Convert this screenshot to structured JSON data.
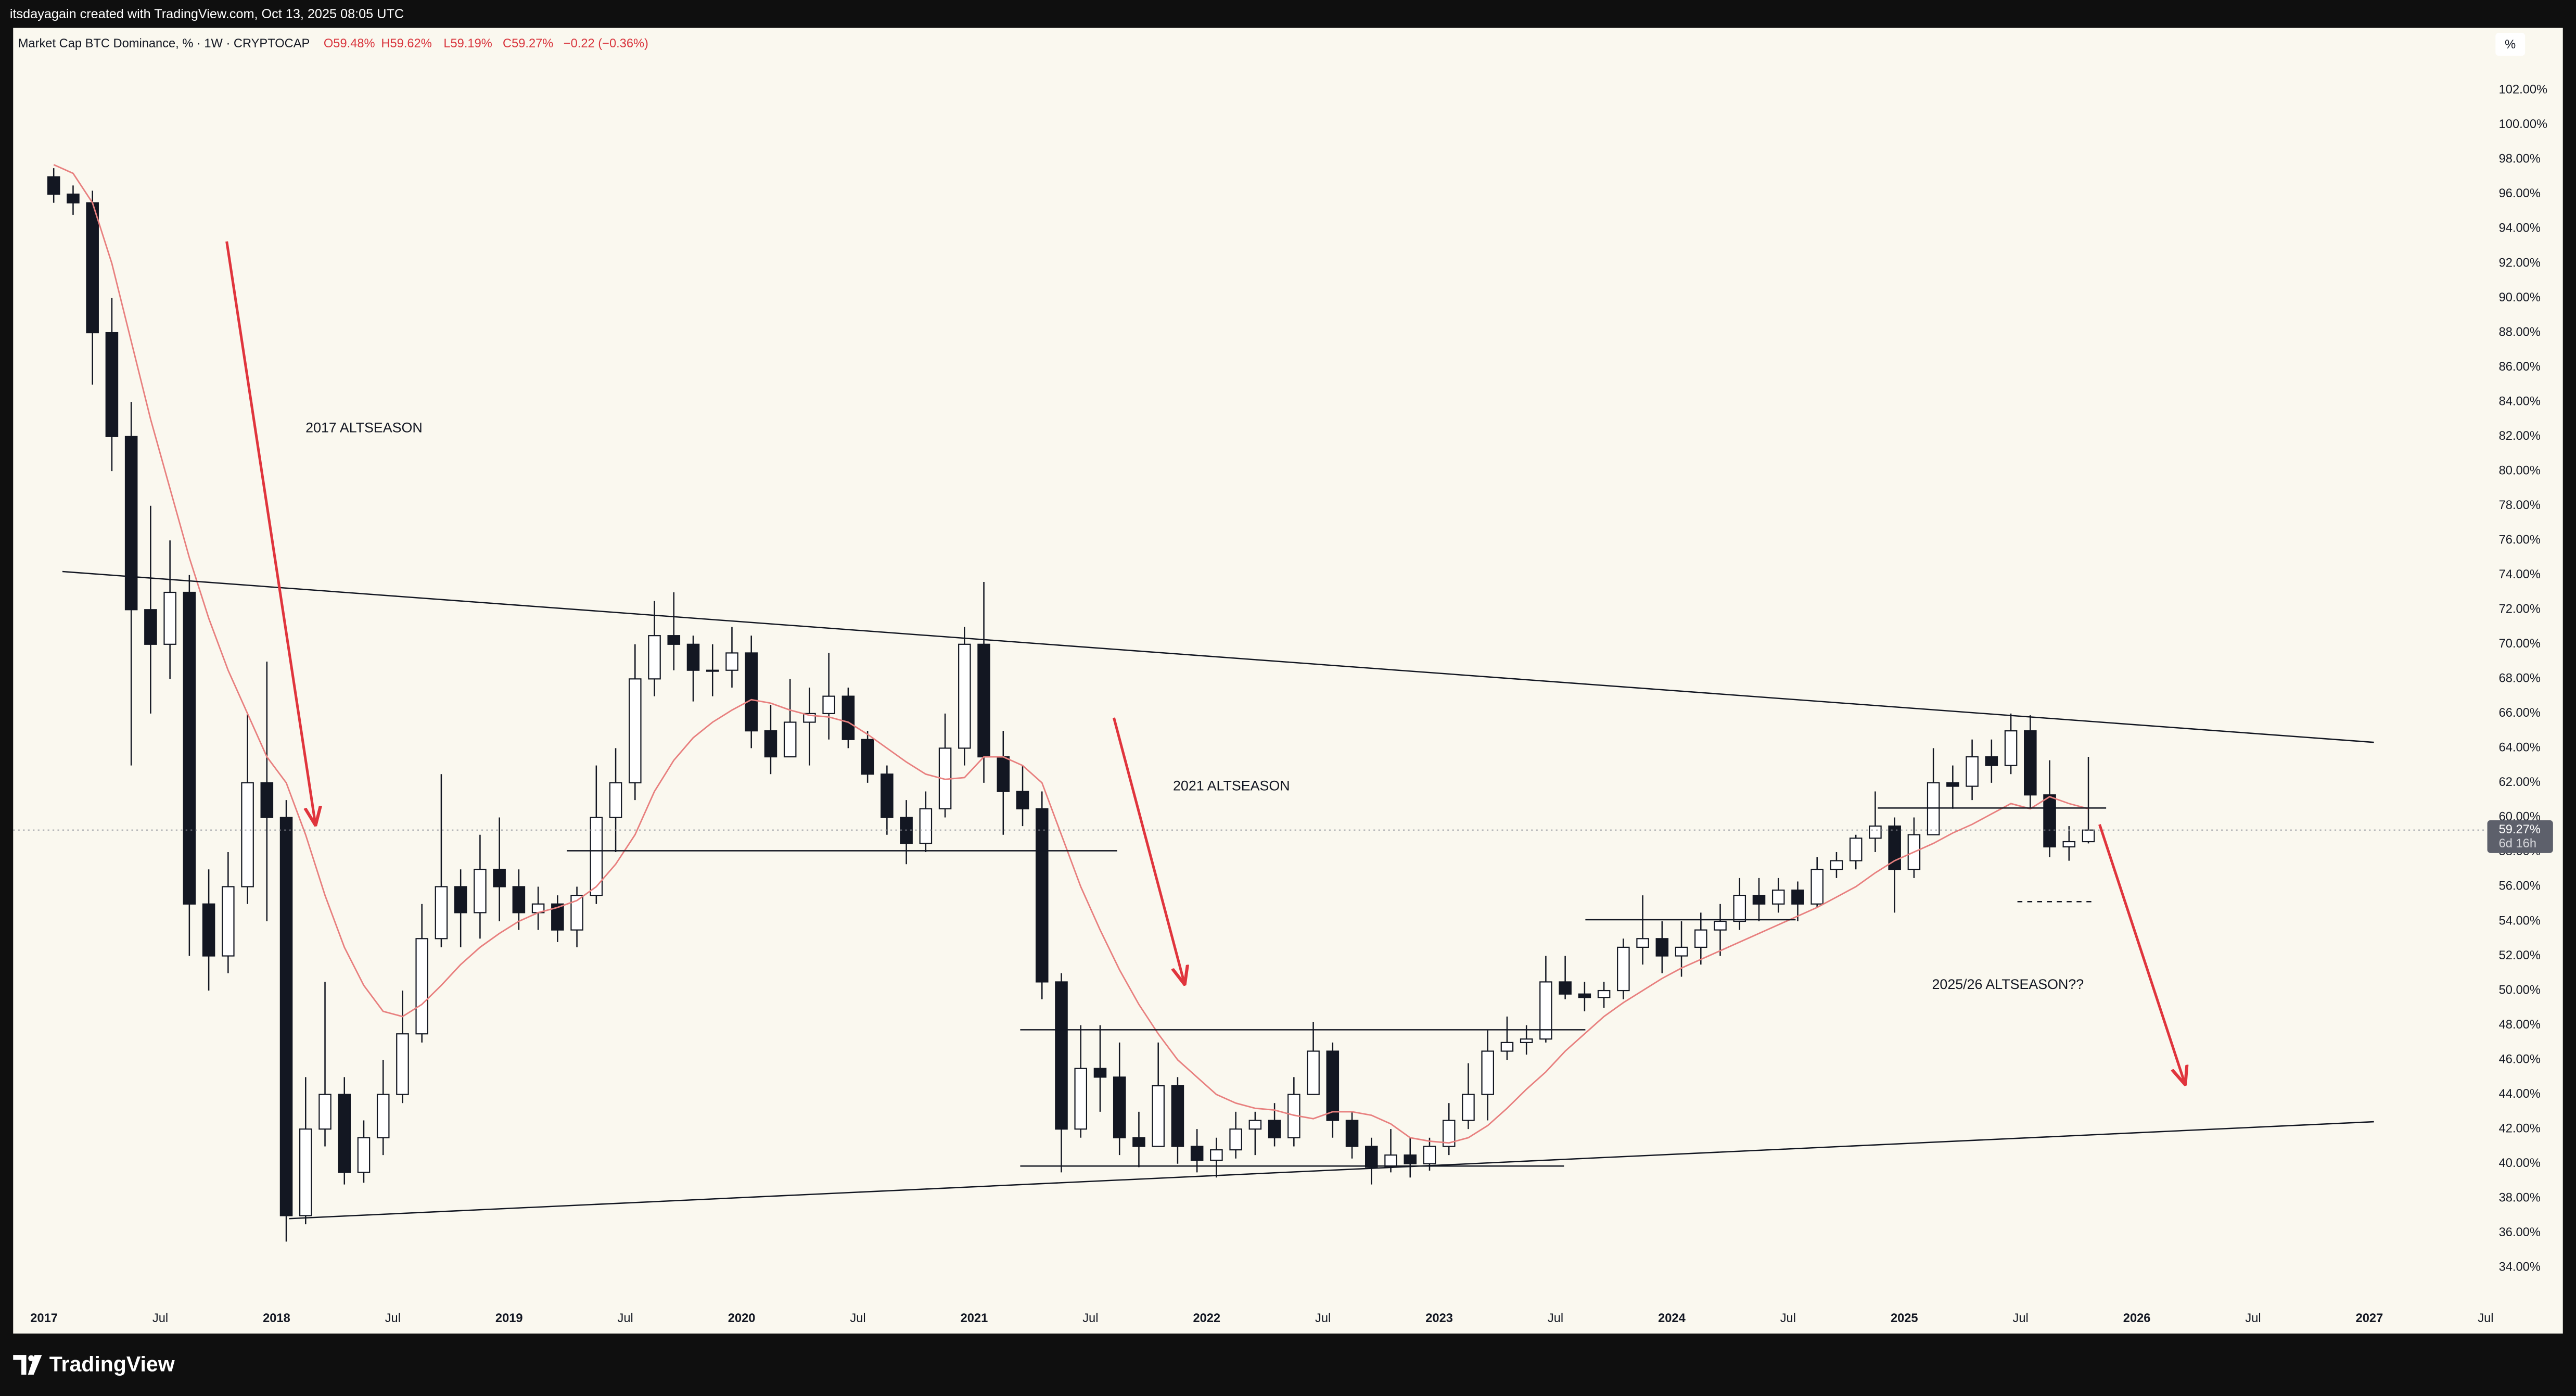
{
  "header": {
    "text": "itsdayagain created with TradingView.com, Oct 13, 2025 08:05 UTC"
  },
  "chart_data": {
    "type": "candlestick",
    "title": "Market Cap BTC Dominance, % · 1W · CRYPTOCAP",
    "ohlc_labels": [
      "O59.48%",
      "H59.62%",
      "L59.19%",
      "C59.27%"
    ],
    "change": "−0.22 (−0.36%)",
    "scale_label": "%",
    "x": [
      "2017-01",
      "2017-02",
      "2017-03",
      "2017-04",
      "2017-05",
      "2017-06",
      "2017-07",
      "2017-08",
      "2017-09",
      "2017-10",
      "2017-11",
      "2017-12",
      "2018-01",
      "2018-02",
      "2018-03",
      "2018-04",
      "2018-05",
      "2018-06",
      "2018-07",
      "2018-08",
      "2018-09",
      "2018-10",
      "2018-11",
      "2018-12",
      "2019-01",
      "2019-02",
      "2019-03",
      "2019-04",
      "2019-05",
      "2019-06",
      "2019-07",
      "2019-08",
      "2019-09",
      "2019-10",
      "2019-11",
      "2019-12",
      "2020-01",
      "2020-02",
      "2020-03",
      "2020-04",
      "2020-05",
      "2020-06",
      "2020-07",
      "2020-08",
      "2020-09",
      "2020-10",
      "2020-11",
      "2020-12",
      "2021-01",
      "2021-02",
      "2021-03",
      "2021-04",
      "2021-05",
      "2021-06",
      "2021-07",
      "2021-08",
      "2021-09",
      "2021-10",
      "2021-11",
      "2021-12",
      "2022-01",
      "2022-02",
      "2022-03",
      "2022-04",
      "2022-05",
      "2022-06",
      "2022-07",
      "2022-08",
      "2022-09",
      "2022-10",
      "2022-11",
      "2022-12",
      "2023-01",
      "2023-02",
      "2023-03",
      "2023-04",
      "2023-05",
      "2023-06",
      "2023-07",
      "2023-08",
      "2023-09",
      "2023-10",
      "2023-11",
      "2023-12",
      "2024-01",
      "2024-02",
      "2024-03",
      "2024-04",
      "2024-05",
      "2024-06",
      "2024-07",
      "2024-08",
      "2024-09",
      "2024-10",
      "2024-11",
      "2024-12",
      "2025-01",
      "2025-02",
      "2025-03",
      "2025-04",
      "2025-05",
      "2025-06",
      "2025-07",
      "2025-08",
      "2025-09",
      "2025-10"
    ],
    "open": [
      97,
      96,
      95.5,
      88,
      82,
      72,
      70,
      73,
      55,
      52,
      56,
      62,
      60,
      37,
      42,
      44,
      39.5,
      41.5,
      44,
      47.5,
      53,
      56,
      54.5,
      57,
      56,
      54.5,
      55,
      53.5,
      55.5,
      60,
      62,
      68,
      70.5,
      70,
      68.5,
      68.5,
      69.5,
      65,
      63.5,
      65.5,
      66,
      67,
      64.5,
      62.5,
      60,
      58.5,
      60.5,
      64,
      70,
      63.5,
      61.5,
      60.5,
      50.5,
      42,
      45.5,
      45,
      41.5,
      41,
      44.5,
      41,
      40.2,
      40.8,
      42,
      42.5,
      41.5,
      44,
      46.5,
      42.5,
      41,
      39.8,
      40.5,
      40,
      41,
      42.5,
      44,
      46.5,
      47,
      47.2,
      50.5,
      49.8,
      49.6,
      50,
      52.5,
      53,
      52,
      52.5,
      53.5,
      54,
      55.5,
      55,
      55.8,
      55,
      57,
      57.5,
      58.8,
      59.5,
      57,
      59,
      62,
      61.8,
      63.5,
      63,
      65,
      61.3,
      58.3,
      58.6
    ],
    "high": [
      97.5,
      96.5,
      96.2,
      90,
      84,
      78,
      76,
      74,
      57,
      58,
      66,
      69,
      61,
      45,
      50.5,
      45,
      42.5,
      46,
      50,
      55,
      62.5,
      57,
      59,
      60,
      57,
      56,
      55.5,
      56,
      63,
      64,
      70,
      72.5,
      73,
      70.5,
      70,
      71,
      70.5,
      66.5,
      68,
      67.5,
      69.5,
      67.5,
      65,
      63,
      61,
      61.5,
      66,
      71,
      73.6,
      65,
      63,
      61.5,
      51,
      48,
      48,
      47,
      43,
      47,
      45,
      42,
      41.5,
      43,
      43,
      43.5,
      45,
      48.2,
      47,
      43,
      41.5,
      42,
      41.5,
      41.5,
      43.5,
      45.8,
      47.7,
      48.5,
      48,
      52,
      52,
      50.5,
      50.5,
      53,
      55.5,
      54,
      54,
      54.5,
      55,
      56.5,
      56.5,
      56.5,
      56.3,
      57.7,
      58,
      59,
      61.5,
      60,
      60,
      64,
      63,
      64.5,
      64.5,
      66,
      65.9,
      63.3,
      59.5,
      63.5
    ],
    "low": [
      95.5,
      94.8,
      85,
      80,
      63,
      66,
      68,
      52,
      50,
      51,
      55,
      54,
      35.5,
      36.5,
      41,
      38.8,
      38.9,
      40.5,
      43.5,
      47,
      52.5,
      52.5,
      53,
      54,
      53.5,
      53.5,
      52.8,
      52.5,
      55,
      58,
      61,
      67,
      68.5,
      66.7,
      67,
      67.5,
      64,
      62.5,
      63.5,
      63,
      64.5,
      64,
      62,
      59,
      57.3,
      58,
      60,
      63,
      62,
      59,
      59.5,
      49.5,
      39.5,
      41.5,
      43,
      40.5,
      39.8,
      41,
      40,
      39.5,
      39.2,
      40.3,
      40.5,
      41,
      41,
      44,
      41.5,
      40.3,
      38.8,
      39.5,
      39.2,
      39.6,
      40.5,
      42,
      42.5,
      46,
      46.3,
      47,
      49.5,
      48.8,
      49,
      49.5,
      51.5,
      51,
      50.8,
      51.5,
      52,
      53.5,
      54,
      54.5,
      54,
      54.8,
      56.5,
      57,
      58,
      54.5,
      56.5,
      59,
      60.5,
      61,
      62,
      62.5,
      60.5,
      57.7,
      57.5,
      58.5
    ],
    "close": [
      96,
      95.5,
      88,
      82,
      72,
      70,
      73,
      55,
      52,
      56,
      62,
      60,
      37,
      42,
      44,
      39.5,
      41.5,
      44,
      47.5,
      53,
      56,
      54.5,
      57,
      56,
      54.5,
      55,
      53.5,
      55.5,
      60,
      62,
      68,
      70.5,
      70,
      68.5,
      68.5,
      69.5,
      65,
      63.5,
      65.5,
      66,
      67,
      64.5,
      62.5,
      60,
      58.5,
      60.5,
      64,
      70,
      63.5,
      61.5,
      60.5,
      50.5,
      42,
      45.5,
      45,
      41.5,
      41,
      44.5,
      41,
      40.2,
      40.8,
      42,
      42.5,
      41.5,
      44,
      46.5,
      42.5,
      41,
      39.8,
      40.5,
      40,
      41,
      42.5,
      44,
      46.5,
      47,
      47.2,
      50.5,
      49.8,
      49.6,
      50,
      52.5,
      53,
      52,
      52.5,
      53.5,
      54,
      55.5,
      55,
      55.8,
      55,
      57,
      57.5,
      58.8,
      59.5,
      57,
      59,
      62,
      61.8,
      63.5,
      63,
      65,
      61.3,
      58.3,
      58.6,
      59.27
    ],
    "up_color": "#ffffff",
    "down_color": "#131722",
    "ma": {
      "color": "#e8807f",
      "values": [
        97.7,
        97.2,
        95.5,
        92,
        87.5,
        83,
        79,
        75,
        71.5,
        68.5,
        66,
        63.5,
        62,
        59,
        55.5,
        52.5,
        50.3,
        48.8,
        48.5,
        49.2,
        50.3,
        51.5,
        52.5,
        53.3,
        54,
        54.5,
        54.8,
        55.2,
        56,
        57.3,
        59,
        61.5,
        63.3,
        64.6,
        65.5,
        66.2,
        66.8,
        66.6,
        66.2,
        65.9,
        65.8,
        65.5,
        64.8,
        64,
        63.2,
        62.5,
        62.2,
        62.3,
        63.5,
        63.5,
        63,
        62,
        59,
        56,
        53.5,
        51.2,
        49.2,
        47.5,
        46,
        45,
        44,
        43.5,
        43.2,
        43.1,
        42.8,
        42.6,
        43,
        43,
        42.8,
        42.3,
        41.5,
        41.3,
        41.2,
        41.5,
        42.2,
        43.2,
        44.3,
        45.3,
        46.5,
        47.5,
        48.5,
        49.3,
        50,
        50.7,
        51.3,
        51.8,
        52.3,
        52.8,
        53.3,
        53.8,
        54.3,
        54.8,
        55.4,
        56,
        56.8,
        57.5,
        58,
        58.5,
        59.1,
        59.6,
        60.2,
        60.8,
        60.5,
        61.2,
        60.8,
        60.5
      ]
    },
    "ylim": [
      31.8,
      105.6
    ],
    "yticks": [
      {
        "value": 34,
        "label": "34.00%"
      },
      {
        "value": 36,
        "label": "36.00%"
      },
      {
        "value": 38,
        "label": "38.00%"
      },
      {
        "value": 40,
        "label": "40.00%"
      },
      {
        "value": 42,
        "label": "42.00%"
      },
      {
        "value": 44,
        "label": "44.00%"
      },
      {
        "value": 46,
        "label": "46.00%"
      },
      {
        "value": 48,
        "label": "48.00%"
      },
      {
        "value": 50,
        "label": "50.00%"
      },
      {
        "value": 52,
        "label": "52.00%"
      },
      {
        "value": 54,
        "label": "54.00%"
      },
      {
        "value": 56,
        "label": "56.00%"
      },
      {
        "value": 58,
        "label": "58.00%"
      },
      {
        "value": 60,
        "label": "60.00%"
      },
      {
        "value": 62,
        "label": "62.00%"
      },
      {
        "value": 64,
        "label": "64.00%"
      },
      {
        "value": 66,
        "label": "66.00%"
      },
      {
        "value": 68,
        "label": "68.00%"
      },
      {
        "value": 70,
        "label": "70.00%"
      },
      {
        "value": 72,
        "label": "72.00%"
      },
      {
        "value": 74,
        "label": "74.00%"
      },
      {
        "value": 76,
        "label": "76.00%"
      },
      {
        "value": 78,
        "label": "78.00%"
      },
      {
        "value": 80,
        "label": "80.00%"
      },
      {
        "value": 82,
        "label": "82.00%"
      },
      {
        "value": 84,
        "label": "84.00%"
      },
      {
        "value": 86,
        "label": "86.00%"
      },
      {
        "value": 88,
        "label": "88.00%"
      },
      {
        "value": 90,
        "label": "90.00%"
      },
      {
        "value": 92,
        "label": "92.00%"
      },
      {
        "value": 94,
        "label": "94.00%"
      },
      {
        "value": 96,
        "label": "96.00%"
      },
      {
        "value": 98,
        "label": "98.00%"
      },
      {
        "value": 100,
        "label": "100.00%"
      },
      {
        "value": 102,
        "label": "102.00%"
      }
    ],
    "xlim": [
      "2016-12",
      "2027-07"
    ],
    "xticks": [
      {
        "value": "2017-01",
        "label": "2017"
      },
      {
        "value": "2017-07",
        "label": "Jul"
      },
      {
        "value": "2018-01",
        "label": "2018"
      },
      {
        "value": "2018-07",
        "label": "Jul"
      },
      {
        "value": "2019-01",
        "label": "2019"
      },
      {
        "value": "2019-07",
        "label": "Jul"
      },
      {
        "value": "2020-01",
        "label": "2020"
      },
      {
        "value": "2020-07",
        "label": "Jul"
      },
      {
        "value": "2021-01",
        "label": "2021"
      },
      {
        "value": "2021-07",
        "label": "Jul"
      },
      {
        "value": "2022-01",
        "label": "2022"
      },
      {
        "value": "2022-07",
        "label": "Jul"
      },
      {
        "value": "2023-01",
        "label": "2023"
      },
      {
        "value": "2023-07",
        "label": "Jul"
      },
      {
        "value": "2024-01",
        "label": "2024"
      },
      {
        "value": "2024-07",
        "label": "Jul"
      },
      {
        "value": "2025-01",
        "label": "2025"
      },
      {
        "value": "2025-07",
        "label": "Jul"
      },
      {
        "value": "2026-01",
        "label": "2026"
      },
      {
        "value": "2026-07",
        "label": "Jul"
      },
      {
        "value": "2027-01",
        "label": "2027"
      },
      {
        "value": "2027-07",
        "label": "Jul"
      }
    ],
    "grid": false,
    "last": {
      "value": 59.27,
      "label": "59.27%"
    },
    "countdown": "6d 16h",
    "annotations": [
      "2017 ALTSEASON",
      "2021 ALTSEASON",
      "2025/26 ALTSEASON??"
    ]
  },
  "footer": {
    "logo": "TradingView"
  }
}
